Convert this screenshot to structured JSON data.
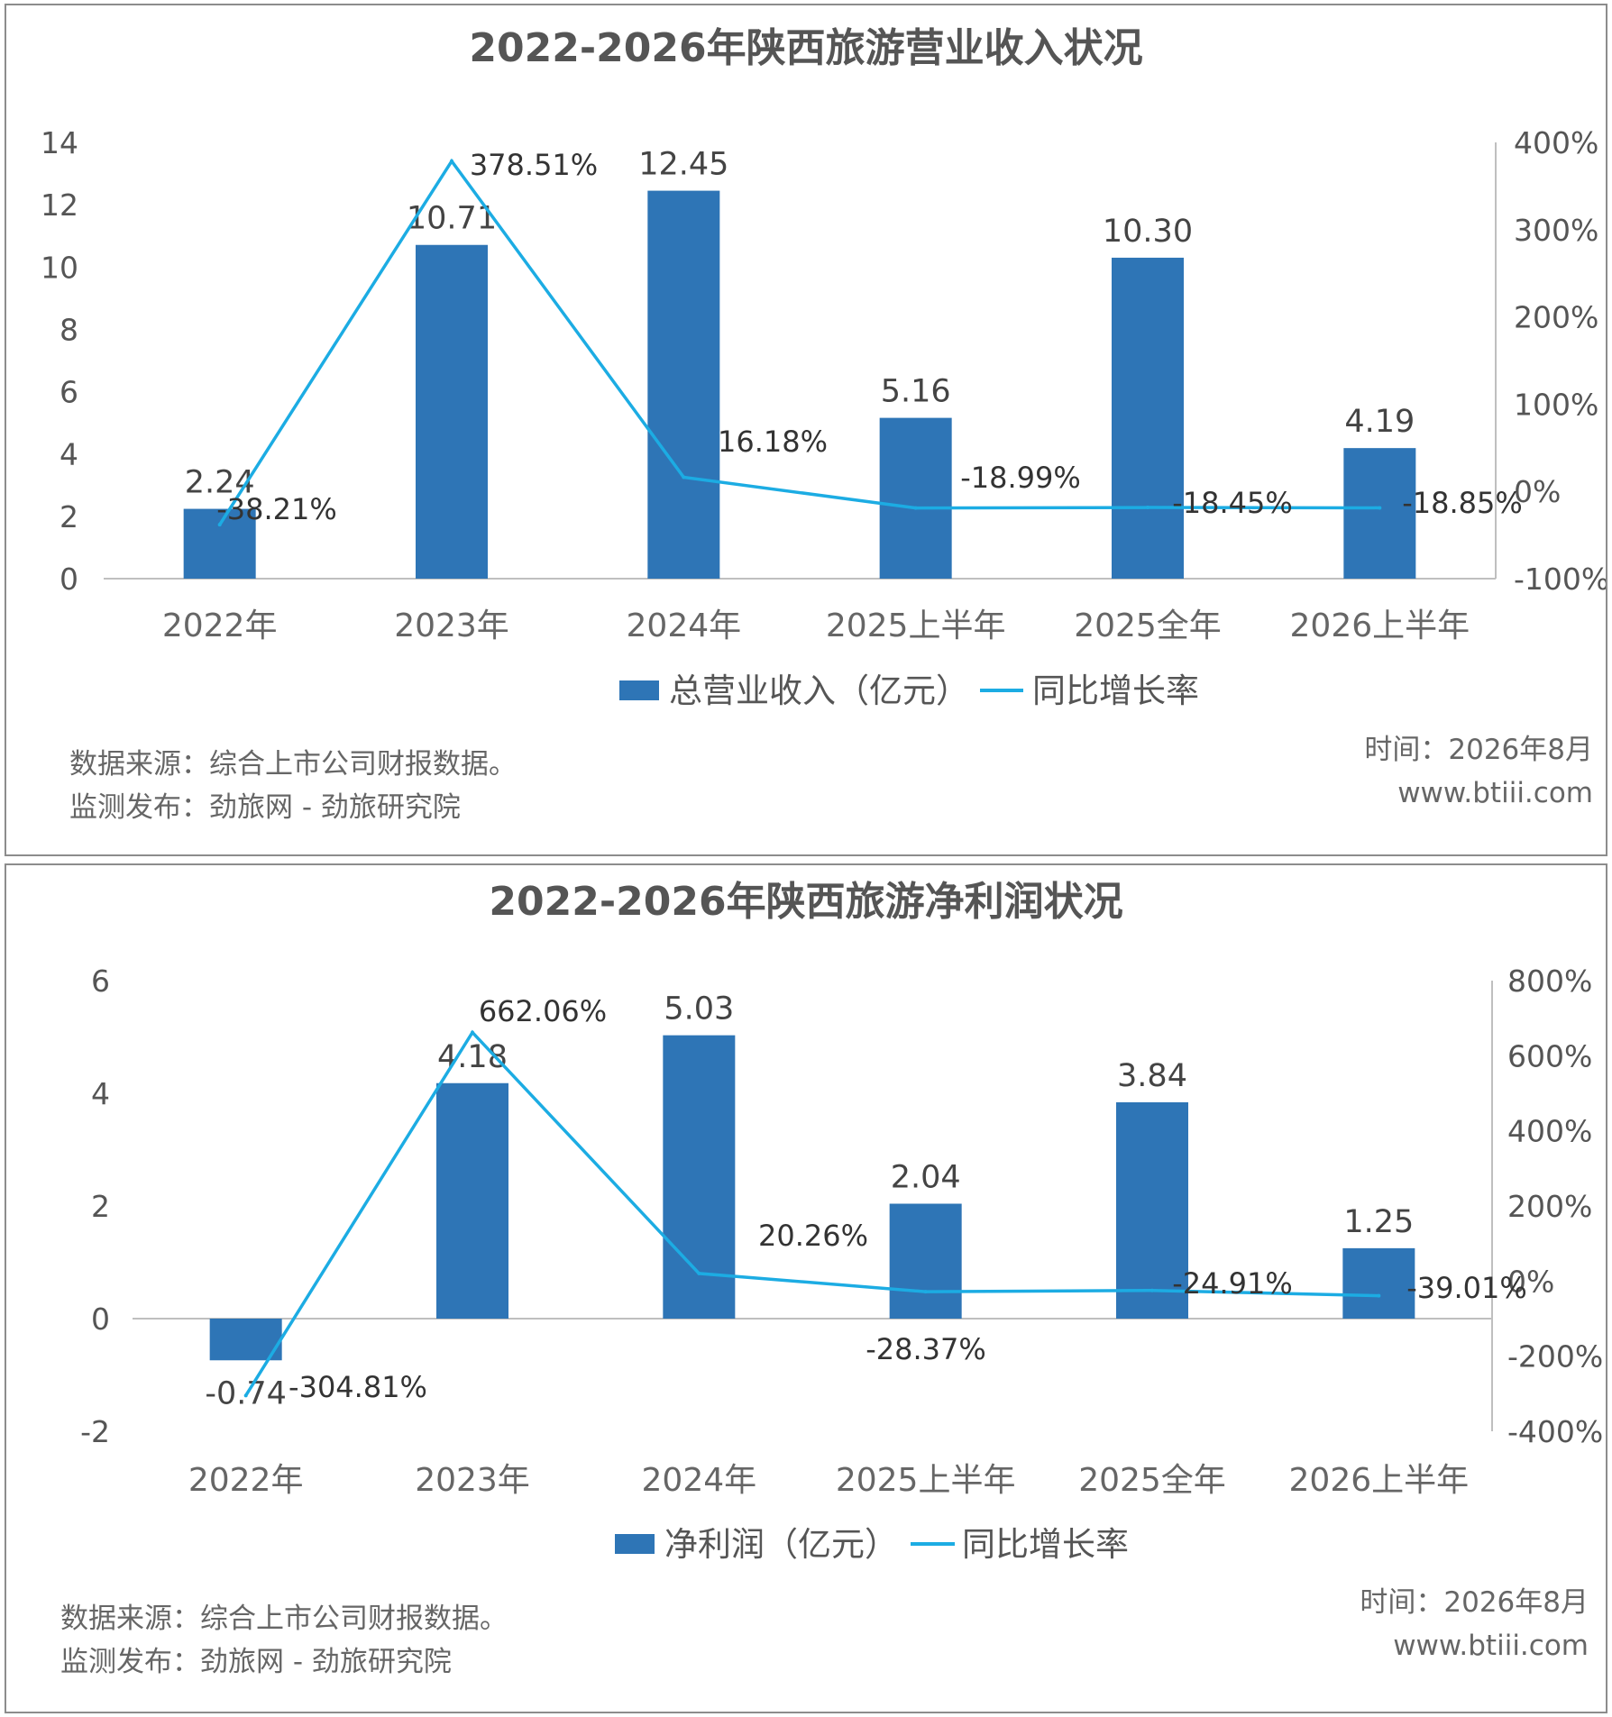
{
  "chart_data": [
    {
      "type": "bar",
      "title": "2022-2026年陕西旅游营业收入状况",
      "categories": [
        "2022年",
        "2023年",
        "2024年",
        "2025上半年",
        "2025全年",
        "2026上半年"
      ],
      "series": [
        {
          "name": "总营业收入（亿元）",
          "type": "bar",
          "axis": "left",
          "values": [
            2.24,
            10.71,
            12.45,
            5.16,
            10.3,
            4.19
          ],
          "labels": [
            "2.24",
            "10.71",
            "12.45",
            "5.16",
            "10.30",
            "4.19"
          ]
        },
        {
          "name": "同比增长率",
          "type": "line",
          "axis": "right",
          "values": [
            -38.21,
            378.51,
            16.18,
            -18.99,
            -18.45,
            -18.85
          ],
          "labels": [
            "-38.21%",
            "378.51%",
            "16.18%",
            "-18.99%",
            "-18.45%",
            "-18.85%"
          ]
        }
      ],
      "ylim": [
        0,
        14
      ],
      "y_ticks": [
        "0",
        "2",
        "4",
        "6",
        "8",
        "10",
        "12",
        "14"
      ],
      "y2lim": [
        -100,
        400
      ],
      "y2_ticks": [
        "-100%",
        "0%",
        "100%",
        "200%",
        "300%",
        "400%"
      ],
      "legend_position": "bottom",
      "grid": false,
      "colors": {
        "bar": "#2e75b6",
        "line": "#1cace3"
      },
      "footer": {
        "source": "数据来源：综合上市公司财报数据。",
        "publisher": "监测发布：劲旅网 - 劲旅研究院",
        "time": "时间：2026年8月",
        "site": "www.btiii.com"
      }
    },
    {
      "type": "bar",
      "title": "2022-2026年陕西旅游净利润状况",
      "categories": [
        "2022年",
        "2023年",
        "2024年",
        "2025上半年",
        "2025全年",
        "2026上半年"
      ],
      "series": [
        {
          "name": "净利润（亿元）",
          "type": "bar",
          "axis": "left",
          "values": [
            -0.74,
            4.18,
            5.03,
            2.04,
            3.84,
            1.25
          ],
          "labels": [
            "-0.74",
            "4.18",
            "5.03",
            "2.04",
            "3.84",
            "1.25"
          ]
        },
        {
          "name": "同比增长率",
          "type": "line",
          "axis": "right",
          "values": [
            -304.81,
            662.06,
            20.26,
            -28.37,
            -24.91,
            -39.01
          ],
          "labels": [
            "-304.81%",
            "662.06%",
            "20.26%",
            "-28.37%",
            "-24.91%",
            "-39.01%"
          ]
        }
      ],
      "ylim": [
        -2,
        6
      ],
      "y_ticks": [
        "-2",
        "0",
        "2",
        "4",
        "6"
      ],
      "y2lim": [
        -400,
        800
      ],
      "y2_ticks": [
        "-400%",
        "-200%",
        "0%",
        "200%",
        "400%",
        "600%",
        "800%"
      ],
      "legend_position": "bottom",
      "grid": false,
      "colors": {
        "bar": "#2e75b6",
        "line": "#1cace3"
      },
      "footer": {
        "source": "数据来源：综合上市公司财报数据。",
        "publisher": "监测发布：劲旅网 - 劲旅研究院",
        "time": "时间：2026年8月",
        "site": "www.btiii.com"
      }
    }
  ]
}
